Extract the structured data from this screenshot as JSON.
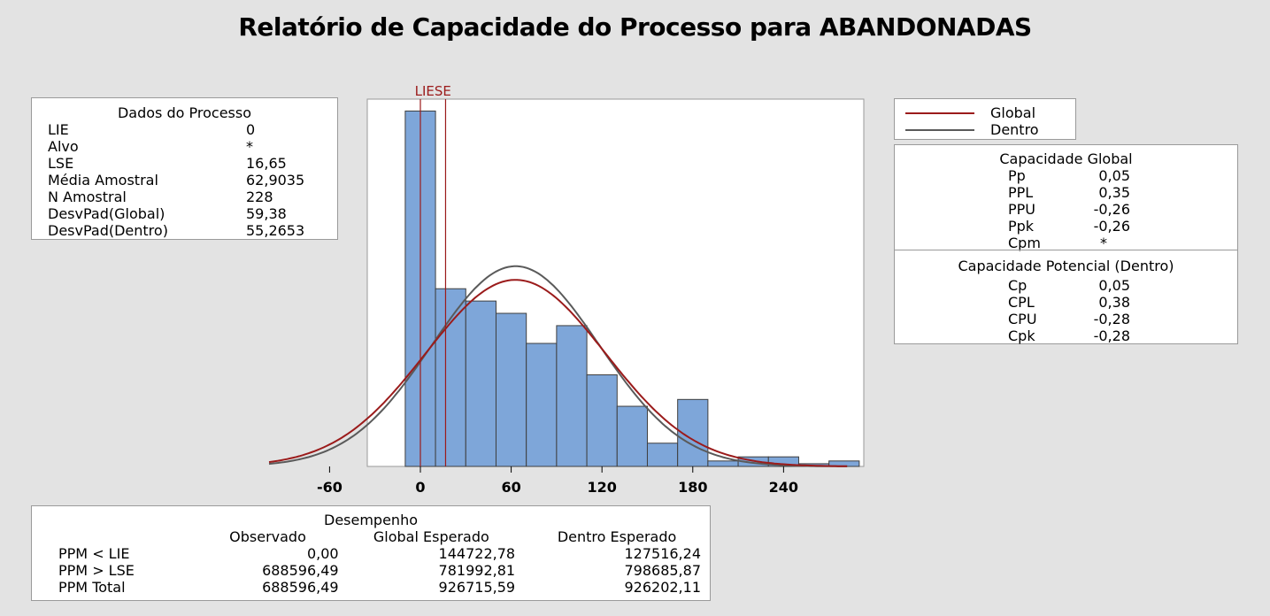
{
  "title": "Relatório de Capacidade do Processo para ABANDONADAS",
  "process_data": {
    "header": "Dados do Processo",
    "rows": [
      {
        "label": "LIE",
        "value": "0"
      },
      {
        "label": "Alvo",
        "value": "*"
      },
      {
        "label": "LSE",
        "value": "16,65"
      },
      {
        "label": "Média Amostral",
        "value": "62,9035"
      },
      {
        "label": "N Amostral",
        "value": "228"
      },
      {
        "label": "DesvPad(Global)",
        "value": "59,38"
      },
      {
        "label": "DesvPad(Dentro)",
        "value": "55,2653"
      }
    ]
  },
  "legend": {
    "global": {
      "label": "Global",
      "color": "#9b1b1b"
    },
    "dentro": {
      "label": "Dentro",
      "color": "#5a5a5a"
    }
  },
  "overall_capability": {
    "header": "Capacidade Global",
    "rows": [
      {
        "label": "Pp",
        "value": "0,05"
      },
      {
        "label": "PPL",
        "value": "0,35"
      },
      {
        "label": "PPU",
        "value": "-0,26"
      },
      {
        "label": "Ppk",
        "value": "-0,26"
      },
      {
        "label": "Cpm",
        "value": "*"
      }
    ]
  },
  "potential_capability": {
    "header": "Capacidade Potencial (Dentro)",
    "rows": [
      {
        "label": "Cp",
        "value": "0,05"
      },
      {
        "label": "CPL",
        "value": "0,38"
      },
      {
        "label": "CPU",
        "value": "-0,28"
      },
      {
        "label": "Cpk",
        "value": "-0,28"
      }
    ]
  },
  "performance": {
    "header": "Desempenho",
    "columns": [
      "",
      "Observado",
      "Global Esperado",
      "Dentro Esperado"
    ],
    "rows": [
      [
        "PPM < LIE",
        "0,00",
        "144722,78",
        "127516,24"
      ],
      [
        "PPM > LSE",
        "688596,49",
        "781992,81",
        "798685,87"
      ],
      [
        "PPM Total",
        "688596,49",
        "926715,59",
        "926202,11"
      ]
    ]
  },
  "chart_data": {
    "type": "bar",
    "bin_width": 20,
    "bin_edges": [
      -10,
      10,
      30,
      50,
      70,
      90,
      110,
      130,
      150,
      170,
      190,
      210,
      230,
      250,
      270,
      290
    ],
    "values": [
      52,
      26,
      24.2,
      22.4,
      18,
      20.6,
      13.4,
      8.8,
      3.4,
      9.8,
      0.8,
      1.4,
      1.4,
      0.4,
      0.8
    ],
    "x_ticks": [
      -60,
      0,
      60,
      120,
      180,
      240
    ],
    "x_tick_labels": [
      "-60",
      "0",
      "60",
      "120",
      "180",
      "240"
    ],
    "xlim": [
      -100,
      293
    ],
    "ylim": [
      0,
      54
    ],
    "spec_limits": [
      {
        "label": "LIE",
        "value": 0
      },
      {
        "label": "LSE",
        "value": 16.65
      }
    ],
    "spec_label": "LIESE",
    "bar_color": "#7ea6d9",
    "curves": [
      {
        "name": "Global",
        "mean": 62.9035,
        "sd": 59.38,
        "peak": 27.3,
        "color": "#9b1b1b"
      },
      {
        "name": "Dentro",
        "mean": 62.9035,
        "sd": 55.2653,
        "peak": 29.3,
        "color": "#5a5a5a"
      }
    ],
    "legend_position": "right"
  }
}
